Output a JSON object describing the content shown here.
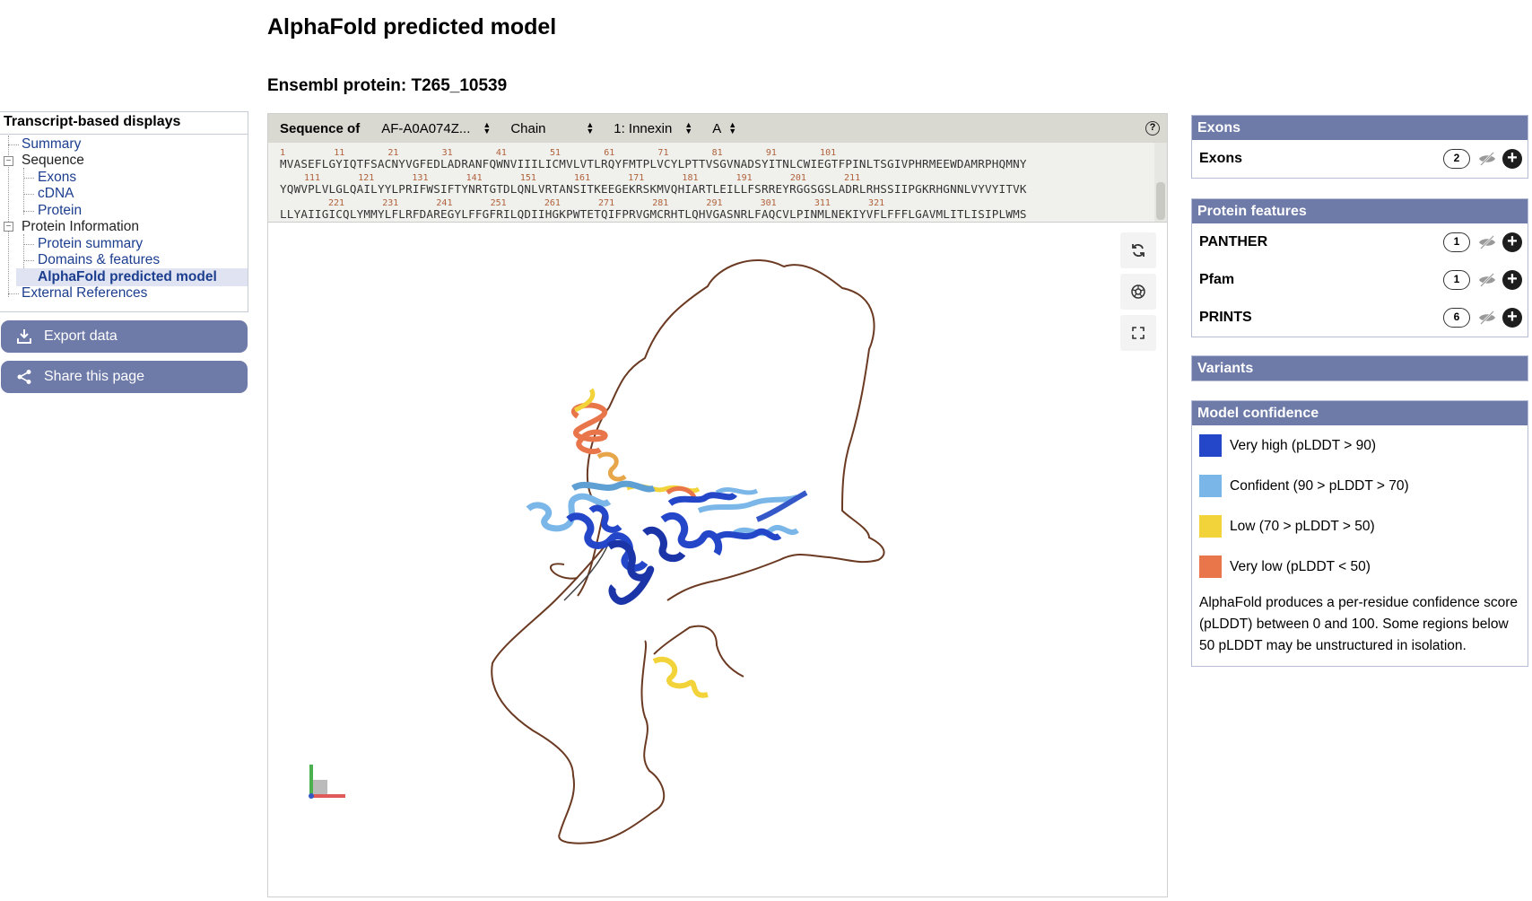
{
  "page": {
    "title": "AlphaFold predicted model",
    "subtitle": "Ensembl protein: T265_10539"
  },
  "nav": {
    "heading": "Transcript-based displays",
    "items": [
      {
        "label": "Summary"
      },
      {
        "label": "Sequence"
      },
      {
        "label": "Exons"
      },
      {
        "label": "cDNA"
      },
      {
        "label": "Protein"
      },
      {
        "label": "Protein Information"
      },
      {
        "label": "Protein summary"
      },
      {
        "label": "Domains & features"
      },
      {
        "label": "AlphaFold predicted model"
      },
      {
        "label": "External References"
      }
    ],
    "export_label": "Export data",
    "share_label": "Share this page"
  },
  "viewer": {
    "toolbar": {
      "sequence_of_label": "Sequence of",
      "model_select": "AF-A0A074Z...",
      "chain_select": "Chain",
      "domain_select": "1: Innexin",
      "chain_id_select": "A",
      "help_icon": "?"
    },
    "sequence": {
      "line1_nums": "1         11        21        31        41        51        61        71        81        91        101",
      "line1": "MVASEFLGYIQTFSACNYVGFEDLADRANFQWNVIIILICMVLVTLRQYFMTPLVCYLPTTVSGVNADSYITNLCWIEGTFPINLTSGIVPHRMEEWDAMRPHQMNY",
      "line2_nums": "111       121       131       141       151       161       171       181       191       201       211",
      "line2": "YQWVPLVLGLQAILYYLPRIFWSIFTYNRTGTDLQNLVRTANSITKEEGEKRSKMVQHIARTLEILLFSRREYRGGSGSLADRLRHSSIIPGKRHGNNLVYVYITVK",
      "line3_nums": "221       231       241       251       261       271       281       291       301       311       321",
      "line3": "LLYAIIGICQLYMMYLFLRFDAREGYLFFGFRILQDIIHGKPWTETQIFPRVGMCRHTLQHVGASNRLFAQCVLPINMLNEKIYVFLFFFLGAVMLITLISIPLWMS"
    },
    "controls": [
      "refresh-icon",
      "camera-icon",
      "fullscreen-icon"
    ]
  },
  "right": {
    "exons": {
      "heading": "Exons",
      "rows": [
        {
          "label": "Exons",
          "count": "2"
        }
      ]
    },
    "protein_features": {
      "heading": "Protein features",
      "rows": [
        {
          "label": "PANTHER",
          "count": "1"
        },
        {
          "label": "Pfam",
          "count": "1"
        },
        {
          "label": "PRINTS",
          "count": "6"
        }
      ]
    },
    "variants": {
      "heading": "Variants"
    },
    "model_confidence": {
      "heading": "Model confidence",
      "legend": [
        {
          "label": "Very high (pLDDT > 90)",
          "color": "#2446c9"
        },
        {
          "label": "Confident (90 > pLDDT > 70)",
          "color": "#7ab6e8"
        },
        {
          "label": "Low (70 > pLDDT > 50)",
          "color": "#f2d43a"
        },
        {
          "label": "Very low (pLDDT < 50)",
          "color": "#e8764a"
        }
      ],
      "note": "AlphaFold produces a per-residue confidence score (pLDDT) between 0 and 100. Some regions below 50 pLDDT may be unstructured in isolation."
    }
  },
  "colors": {
    "accent": "#6e7aa8",
    "link": "#1c3e8f",
    "toolbar_bg": "#d9d8d1",
    "seq_num": "#b0613a"
  }
}
